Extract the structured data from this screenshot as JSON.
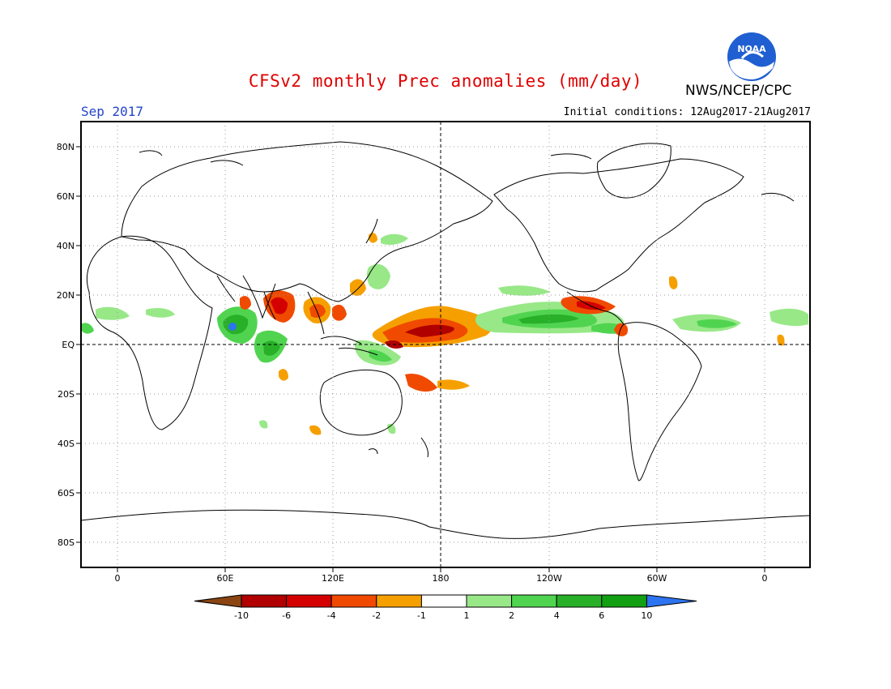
{
  "title": "CFSv2 monthly Prec anomalies (mm/day)",
  "forecast_month": "Sep 2017",
  "initial_conditions": "Initial conditions: 12Aug2017-21Aug2017",
  "agency": "NWS/NCEP/CPC",
  "logo_text": "NOAA",
  "map": {
    "lat_labels": [
      "80N",
      "60N",
      "40N",
      "20N",
      "EQ",
      "20S",
      "40S",
      "60S",
      "80S"
    ],
    "lon_labels": [
      "0",
      "60E",
      "120E",
      "180",
      "120W",
      "60W",
      "0"
    ],
    "colorbar": {
      "labels": [
        "-10",
        "-6",
        "-4",
        "-2",
        "-1",
        "1",
        "2",
        "4",
        "6",
        "10"
      ],
      "colors": [
        "#8b4513",
        "#b00000",
        "#d40000",
        "#f04a00",
        "#f5a000",
        "#ffffff",
        "#98e888",
        "#50d450",
        "#28b028",
        "#12a012",
        "#2d74f0"
      ]
    }
  }
}
